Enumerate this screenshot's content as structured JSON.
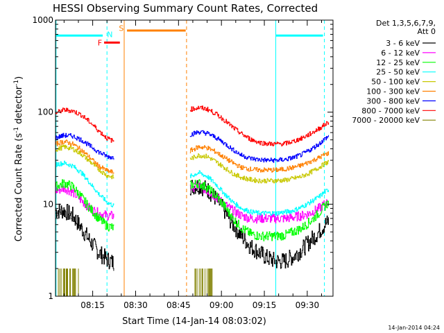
{
  "chart_data": {
    "type": "line",
    "title": "HESSI Observing Summary Count Rates, Corrected",
    "xlabel": "Start Time (14-Jan-14 08:03:02)",
    "ylabel": "Corrected Count Rate (s⁻¹ detector⁻¹)",
    "ylabel_parts": {
      "pre": "Corrected Count Rate (s",
      "sup1": "-1",
      "mid": " detector",
      "sup2": "-1",
      "post": ")"
    },
    "yscale": "log",
    "ylim": [
      1,
      1000
    ],
    "xlim_minutes": [
      482,
      579
    ],
    "x_tick_labels": [
      "08:15",
      "08:30",
      "08:45",
      "09:00",
      "09:15",
      "09:30"
    ],
    "x_tick_minutes": [
      495,
      510,
      525,
      540,
      555,
      570
    ],
    "y_tick_labels": [
      "1",
      "10",
      "100",
      "1000"
    ],
    "y_tick_values": [
      1,
      10,
      100,
      1000
    ],
    "legend_header": [
      "Det 1,3,5,6,7,9,",
      "Att 0"
    ],
    "legend_position": "right",
    "timestamp": "14-Jan-2014 04:24",
    "series": [
      {
        "name": "3 - 6 keV",
        "color": "#000000",
        "segments": [
          {
            "x": [
              482,
              485,
              488,
              491,
              494,
              497,
              500,
              502.5
            ],
            "y": [
              8.5,
              8.5,
              7.5,
              5.5,
              4.0,
              3.0,
              2.5,
              2.3
            ]
          },
          {
            "x": [
              529,
              532,
              535,
              538,
              541,
              544,
              547,
              550,
              553,
              556,
              559,
              562,
              565,
              568,
              571,
              574,
              576,
              577.5
            ],
            "y": [
              15.5,
              16,
              14.5,
              11.5,
              8.5,
              6.0,
              4.5,
              3.5,
              3.0,
              2.6,
              2.4,
              2.4,
              2.7,
              3.2,
              4.0,
              5.0,
              6.0,
              6.5
            ]
          }
        ]
      },
      {
        "name": "6 - 12 keV",
        "color": "#ff00ff",
        "segments": [
          {
            "x": [
              482,
              485,
              488,
              491,
              494,
              497,
              500,
              502.5
            ],
            "y": [
              14,
              15,
              13.5,
              11,
              9,
              8,
              7.5,
              7.5
            ]
          },
          {
            "x": [
              529,
              532,
              535,
              538,
              541,
              544,
              547,
              550,
              553,
              556,
              559,
              562,
              565,
              568,
              571,
              574,
              576,
              577.5
            ],
            "y": [
              15,
              16,
              14,
              12,
              10,
              8.5,
              7.5,
              7,
              7,
              7,
              7,
              7,
              7.2,
              7.5,
              8,
              9,
              10,
              10.5
            ]
          }
        ]
      },
      {
        "name": "12 - 25 keV",
        "color": "#00ff00",
        "segments": [
          {
            "x": [
              482,
              485,
              488,
              491,
              494,
              497,
              500,
              502.5
            ],
            "y": [
              15.5,
              17,
              15.5,
              12,
              9,
              7,
              5.8,
              5.5
            ]
          },
          {
            "x": [
              529,
              532,
              535,
              538,
              541,
              544,
              547,
              550,
              553,
              556,
              559,
              562,
              565,
              568,
              571,
              574,
              576,
              577.5
            ],
            "y": [
              16,
              17,
              15,
              12.5,
              9.5,
              7,
              5.5,
              4.8,
              4.5,
              4.5,
              4.5,
              4.6,
              5,
              5.5,
              6.5,
              8,
              9.5,
              10.5
            ]
          }
        ]
      },
      {
        "name": "25 - 50 keV",
        "color": "#00ffff",
        "segments": [
          {
            "x": [
              482,
              485,
              488,
              491,
              494,
              497,
              500,
              502.5
            ],
            "y": [
              27,
              28,
              26,
              22,
              17,
              13,
              10.5,
              9.5
            ]
          },
          {
            "x": [
              529,
              532,
              535,
              538,
              541,
              544,
              547,
              550,
              553,
              556,
              559,
              562,
              565,
              568,
              571,
              574,
              576,
              577.5
            ],
            "y": [
              20,
              22,
              20,
              16.5,
              13,
              10.5,
              9,
              8.3,
              8,
              8,
              8,
              8.2,
              8.5,
              9.3,
              10.5,
              12,
              13.5,
              14.5
            ]
          }
        ]
      },
      {
        "name": "50 - 100 keV",
        "color": "#c8c800",
        "segments": [
          {
            "x": [
              482,
              485,
              488,
              491,
              494,
              497,
              500,
              502.5
            ],
            "y": [
              39,
              42,
              40,
              35,
              29,
              24,
              20.5,
              19.5
            ]
          },
          {
            "x": [
              529,
              532,
              535,
              538,
              541,
              544,
              547,
              550,
              553,
              556,
              559,
              562,
              565,
              568,
              571,
              574,
              576,
              577.5
            ],
            "y": [
              31,
              34,
              33,
              29,
              25,
              21.5,
              19.5,
              18.5,
              18,
              18,
              18,
              18.2,
              19,
              20,
              22,
              25,
              27.5,
              29
            ]
          }
        ]
      },
      {
        "name": "100 - 300 keV",
        "color": "#ff8000",
        "segments": [
          {
            "x": [
              482,
              485,
              488,
              491,
              494,
              497,
              500,
              502.5
            ],
            "y": [
              45,
              48,
              45,
              39,
              32,
              26,
              23,
              22
            ]
          },
          {
            "x": [
              529,
              532,
              535,
              538,
              541,
              544,
              547,
              550,
              553,
              556,
              559,
              562,
              565,
              568,
              571,
              574,
              576,
              577.5
            ],
            "y": [
              38,
              42,
              41,
              37,
              32,
              28,
              25,
              24,
              23.5,
              23.5,
              23.5,
              24,
              25,
              26.5,
              29,
              32,
              34.5,
              36
            ]
          }
        ]
      },
      {
        "name": "300 - 800 keV",
        "color": "#0000ff",
        "segments": [
          {
            "x": [
              482,
              485,
              488,
              491,
              494,
              497,
              500,
              502.5
            ],
            "y": [
              53,
              56,
              55,
              50,
              43,
              37,
              33,
              32
            ]
          },
          {
            "x": [
              529,
              532,
              535,
              538,
              541,
              544,
              547,
              550,
              553,
              556,
              559,
              562,
              565,
              568,
              571,
              574,
              576,
              577.5
            ],
            "y": [
              57,
              61,
              59,
              53,
              46,
              39,
              34,
              31.5,
              30.5,
              30,
              30,
              30.5,
              32,
              34.5,
              39,
              45,
              51,
              55
            ]
          }
        ]
      },
      {
        "name": "800 - 7000 keV",
        "color": "#ff0000",
        "segments": [
          {
            "x": [
              482,
              485,
              488,
              491,
              494,
              497,
              500,
              502.5
            ],
            "y": [
              98,
              106,
              103,
              93,
              78,
              63,
              52,
              48
            ]
          },
          {
            "x": [
              529,
              532,
              535,
              538,
              541,
              544,
              547,
              550,
              553,
              556,
              559,
              562,
              565,
              568,
              571,
              574,
              576,
              577.5
            ],
            "y": [
              107,
              112,
              108,
              96,
              82,
              68,
              58,
              51,
              47,
              45.5,
              45,
              45.5,
              48,
              52,
              58,
              66,
              73,
              78
            ]
          }
        ]
      },
      {
        "name": "7000 - 20000 keV",
        "color": "#808000",
        "segments": []
      }
    ],
    "flag_bars": [
      {
        "label": "",
        "color": "#00ffff",
        "x": [
          482,
          498.5
        ],
        "y": 680
      },
      {
        "label": "N",
        "color": "#00ffff",
        "x": [
          501,
          501
        ],
        "y": 700
      },
      {
        "label": "S",
        "color": "#ff8000",
        "x": [
          505,
          505
        ],
        "y": 820
      },
      {
        "label": "F",
        "color": "#ff0000",
        "x": [
          499,
          504.5
        ],
        "y": 570
      },
      {
        "label": "",
        "color": "#ff8000",
        "x": [
          507,
          527.5
        ],
        "y": 770
      },
      {
        "label": "",
        "color": "#00ffff",
        "x": [
          559,
          575.5
        ],
        "y": 680
      }
    ]
  }
}
